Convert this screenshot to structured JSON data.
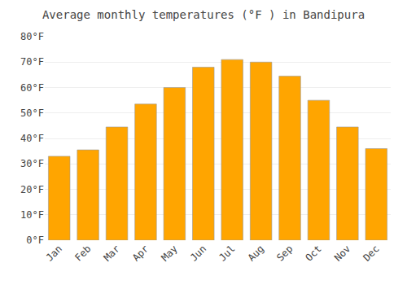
{
  "chart_data": {
    "type": "bar",
    "title": "Average monthly temperatures (°F ) in Bandipura",
    "categories": [
      "Jan",
      "Feb",
      "Mar",
      "Apr",
      "May",
      "Jun",
      "Jul",
      "Aug",
      "Sep",
      "Oct",
      "Nov",
      "Dec"
    ],
    "values": [
      33,
      35.5,
      44.5,
      53.5,
      60,
      68,
      71,
      70,
      64.5,
      55,
      44.5,
      36
    ],
    "color": "#FFA500",
    "ylim": [
      0,
      80
    ],
    "yticks": [
      {
        "value": 0,
        "label": "0°F"
      },
      {
        "value": 10,
        "label": "10°F"
      },
      {
        "value": 20,
        "label": "20°F"
      },
      {
        "value": 30,
        "label": "30°F"
      },
      {
        "value": 40,
        "label": "40°F"
      },
      {
        "value": 50,
        "label": "50°F"
      },
      {
        "value": 60,
        "label": "60°F"
      },
      {
        "value": 70,
        "label": "70°F"
      },
      {
        "value": 80,
        "label": "80°F"
      }
    ],
    "grid": true
  }
}
